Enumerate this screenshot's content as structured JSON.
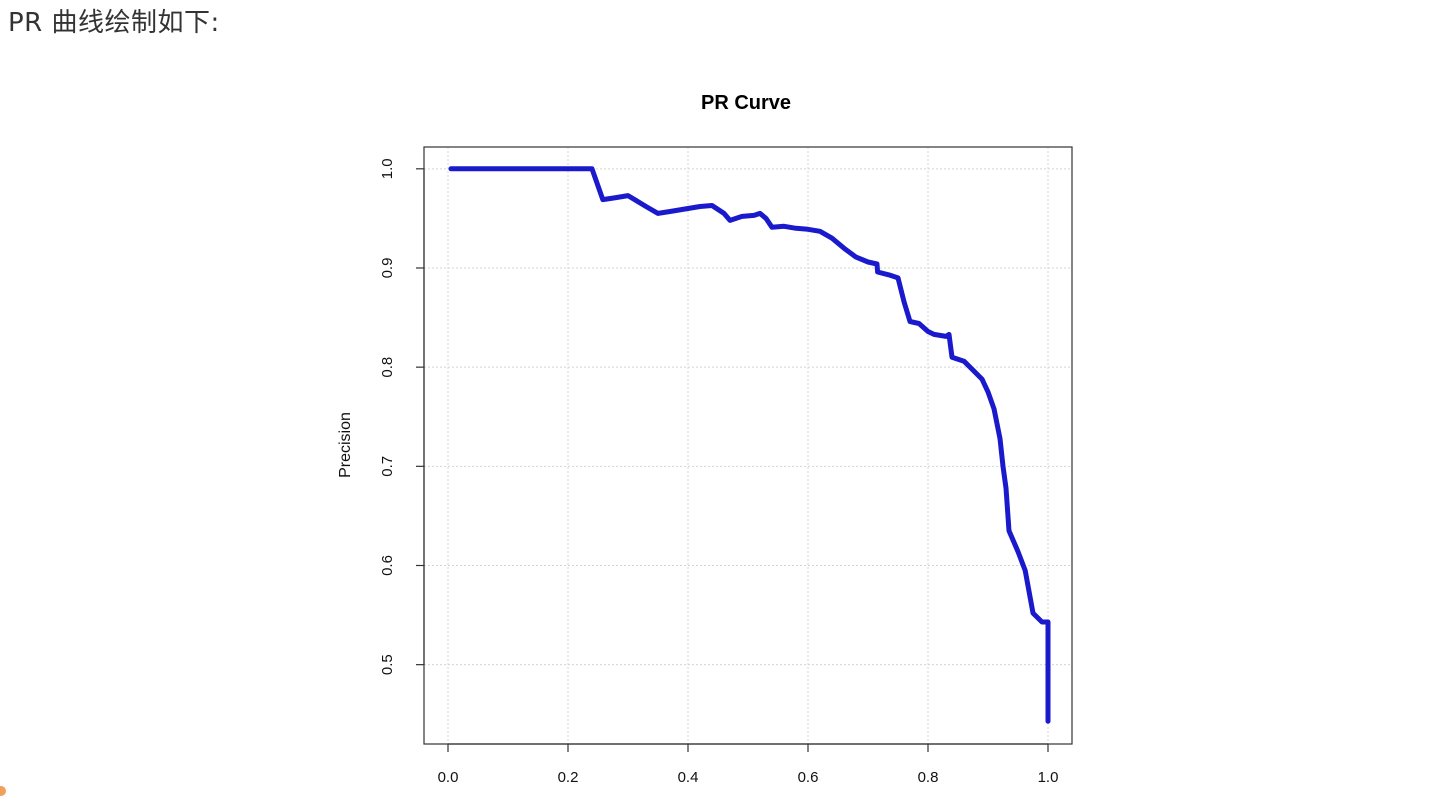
{
  "intro_text": "PR 曲线绘制如下:",
  "colors": {
    "curve": "#1a1acc",
    "frame": "#333333",
    "grid": "#d4d4d4",
    "accent_dot": "#f0a05a"
  },
  "chart_data": {
    "type": "line",
    "title": "PR Curve",
    "xlabel": "",
    "ylabel": "Precision",
    "xlim": [
      -0.04,
      1.04
    ],
    "ylim": [
      0.42,
      1.022
    ],
    "x_ticks": [
      0.0,
      0.2,
      0.4,
      0.6,
      0.8,
      1.0
    ],
    "x_tick_labels": [
      "0.0",
      "0.2",
      "0.4",
      "0.6",
      "0.8",
      "1.0"
    ],
    "y_ticks": [
      0.5,
      0.6,
      0.7,
      0.8,
      0.9,
      1.0
    ],
    "y_tick_labels": [
      "0.5",
      "0.6",
      "0.7",
      "0.8",
      "0.9",
      "1.0"
    ],
    "grid": true,
    "series": [
      {
        "x": [
          0.005,
          0.24,
          0.258,
          0.28,
          0.3,
          0.33,
          0.35,
          0.37,
          0.4,
          0.42,
          0.44,
          0.46,
          0.47,
          0.49,
          0.51,
          0.52,
          0.53,
          0.54,
          0.56,
          0.58,
          0.6,
          0.62,
          0.64,
          0.66,
          0.68,
          0.7,
          0.715,
          0.716,
          0.735,
          0.75,
          0.76,
          0.77,
          0.785,
          0.8,
          0.81,
          0.83,
          0.835,
          0.84,
          0.86,
          0.875,
          0.89,
          0.9,
          0.91,
          0.92,
          0.925,
          0.93,
          0.935,
          0.95,
          0.962,
          0.975,
          0.99,
          1.0,
          1.0
        ],
        "y": [
          1.0,
          1.0,
          0.969,
          0.971,
          0.973,
          0.962,
          0.955,
          0.957,
          0.96,
          0.962,
          0.963,
          0.955,
          0.948,
          0.952,
          0.953,
          0.955,
          0.95,
          0.941,
          0.942,
          0.94,
          0.939,
          0.937,
          0.93,
          0.92,
          0.911,
          0.906,
          0.904,
          0.896,
          0.893,
          0.89,
          0.866,
          0.846,
          0.844,
          0.836,
          0.833,
          0.831,
          0.833,
          0.81,
          0.806,
          0.797,
          0.788,
          0.775,
          0.758,
          0.728,
          0.7,
          0.678,
          0.635,
          0.614,
          0.595,
          0.552,
          0.543,
          0.543,
          0.443
        ]
      }
    ]
  }
}
